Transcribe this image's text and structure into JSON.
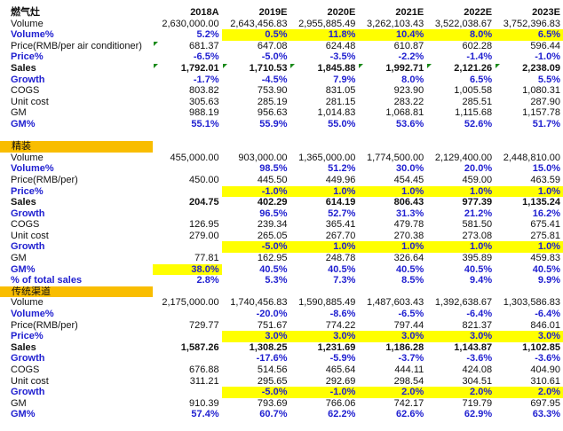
{
  "columns": [
    "2018A",
    "2019E",
    "2020E",
    "2021E",
    "2022E",
    "2023E"
  ],
  "colors": {
    "section_header": "#f9bd00",
    "highlight": "#ffff00",
    "percent_text": "#1f1fd0",
    "comment_marker": "#1a8a1a"
  },
  "sections": [
    {
      "title": "燃气灶",
      "is_header_row": true,
      "rows": [
        {
          "label": "Volume",
          "style": "normal",
          "values": [
            "2,630,000.00",
            "2,643,456.83",
            "2,955,885.49",
            "3,262,103.43",
            "3,522,038.67",
            "3,752,396.83"
          ],
          "highlight": []
        },
        {
          "label": "Volume%",
          "style": "blue",
          "values": [
            "5.2%",
            "0.5%",
            "11.8%",
            "10.4%",
            "8.0%",
            "6.5%"
          ],
          "highlight": [
            1,
            2,
            3,
            4,
            5
          ]
        },
        {
          "label": "Price(RMB/per air conditioner)",
          "style": "normal",
          "values": [
            "681.37",
            "647.08",
            "624.48",
            "610.87",
            "602.28",
            "596.44"
          ],
          "highlight": [],
          "label_marker": true
        },
        {
          "label": "Price%",
          "style": "blue",
          "values": [
            "-6.5%",
            "-5.0%",
            "-3.5%",
            "-2.2%",
            "-1.4%",
            "-1.0%"
          ],
          "highlight": []
        },
        {
          "label": "Sales",
          "style": "bold",
          "values": [
            "1,792.01",
            "1,710.53",
            "1,845.88",
            "1,992.71",
            "2,121.26",
            "2,238.09"
          ],
          "highlight": [],
          "label_marker": true,
          "cell_markers": [
            0,
            1,
            2,
            3,
            4
          ]
        },
        {
          "label": "Growth",
          "style": "blue",
          "values": [
            "-1.7%",
            "-4.5%",
            "7.9%",
            "8.0%",
            "6.5%",
            "5.5%"
          ],
          "highlight": []
        },
        {
          "label": "COGS",
          "style": "normal",
          "values": [
            "803.82",
            "753.90",
            "831.05",
            "923.90",
            "1,005.58",
            "1,080.31"
          ],
          "highlight": []
        },
        {
          "label": "Unit cost",
          "style": "normal",
          "values": [
            "305.63",
            "285.19",
            "281.15",
            "283.22",
            "285.51",
            "287.90"
          ],
          "highlight": []
        },
        {
          "label": "GM",
          "style": "normal",
          "values": [
            "988.19",
            "956.63",
            "1,014.83",
            "1,068.81",
            "1,115.68",
            "1,157.78"
          ],
          "highlight": []
        },
        {
          "label": "GM%",
          "style": "blue",
          "values": [
            "55.1%",
            "55.9%",
            "55.0%",
            "53.6%",
            "52.6%",
            "51.7%"
          ],
          "highlight": []
        }
      ]
    },
    {
      "title": "精装",
      "rows": [
        {
          "label": "Volume",
          "style": "normal",
          "values": [
            "455,000.00",
            "903,000.00",
            "1,365,000.00",
            "1,774,500.00",
            "2,129,400.00",
            "2,448,810.00"
          ],
          "highlight": []
        },
        {
          "label": "Volume%",
          "style": "blue",
          "values": [
            "",
            "98.5%",
            "51.2%",
            "30.0%",
            "20.0%",
            "15.0%"
          ],
          "highlight": []
        },
        {
          "label": "Price(RMB/per)",
          "style": "normal",
          "values": [
            "450.00",
            "445.50",
            "449.96",
            "454.45",
            "459.00",
            "463.59"
          ],
          "highlight": []
        },
        {
          "label": "Price%",
          "style": "blue",
          "values": [
            "",
            "-1.0%",
            "1.0%",
            "1.0%",
            "1.0%",
            "1.0%"
          ],
          "highlight": [
            1,
            2,
            3,
            4,
            5
          ]
        },
        {
          "label": "Sales",
          "style": "bold",
          "values": [
            "204.75",
            "402.29",
            "614.19",
            "806.43",
            "977.39",
            "1,135.24"
          ],
          "highlight": []
        },
        {
          "label": "Growth",
          "style": "blue",
          "values": [
            "",
            "96.5%",
            "52.7%",
            "31.3%",
            "21.2%",
            "16.2%"
          ],
          "highlight": []
        },
        {
          "label": "COGS",
          "style": "normal",
          "values": [
            "126.95",
            "239.34",
            "365.41",
            "479.78",
            "581.50",
            "675.41"
          ],
          "highlight": []
        },
        {
          "label": "Unit cost",
          "style": "normal",
          "values": [
            "279.00",
            "265.05",
            "267.70",
            "270.38",
            "273.08",
            "275.81"
          ],
          "highlight": []
        },
        {
          "label": "Growth",
          "style": "blue",
          "values": [
            "",
            "-5.0%",
            "1.0%",
            "1.0%",
            "1.0%",
            "1.0%"
          ],
          "highlight": [
            1,
            2,
            3,
            4,
            5
          ]
        },
        {
          "label": "GM",
          "style": "normal",
          "values": [
            "77.81",
            "162.95",
            "248.78",
            "326.64",
            "395.89",
            "459.83"
          ],
          "highlight": []
        },
        {
          "label": "GM%",
          "style": "blue",
          "values": [
            "38.0%",
            "40.5%",
            "40.5%",
            "40.5%",
            "40.5%",
            "40.5%"
          ],
          "highlight": [
            0
          ]
        },
        {
          "label": "% of total sales",
          "style": "blue",
          "values": [
            "2.8%",
            "5.3%",
            "7.3%",
            "8.5%",
            "9.4%",
            "9.9%"
          ],
          "highlight": []
        }
      ]
    },
    {
      "title": "传统渠道",
      "rows": [
        {
          "label": "Volume",
          "style": "normal",
          "values": [
            "2,175,000.00",
            "1,740,456.83",
            "1,590,885.49",
            "1,487,603.43",
            "1,392,638.67",
            "1,303,586.83"
          ],
          "highlight": []
        },
        {
          "label": "Volume%",
          "style": "blue",
          "values": [
            "",
            "-20.0%",
            "-8.6%",
            "-6.5%",
            "-6.4%",
            "-6.4%"
          ],
          "highlight": []
        },
        {
          "label": "Price(RMB/per)",
          "style": "normal",
          "values": [
            "729.77",
            "751.67",
            "774.22",
            "797.44",
            "821.37",
            "846.01"
          ],
          "highlight": []
        },
        {
          "label": "Price%",
          "style": "blue",
          "values": [
            "",
            "3.0%",
            "3.0%",
            "3.0%",
            "3.0%",
            "3.0%"
          ],
          "highlight": [
            1,
            2,
            3,
            4,
            5
          ]
        },
        {
          "label": "Sales",
          "style": "bold",
          "values": [
            "1,587.26",
            "1,308.25",
            "1,231.69",
            "1,186.28",
            "1,143.87",
            "1,102.85"
          ],
          "highlight": []
        },
        {
          "label": "Growth",
          "style": "blue",
          "values": [
            "",
            "-17.6%",
            "-5.9%",
            "-3.7%",
            "-3.6%",
            "-3.6%"
          ],
          "highlight": []
        },
        {
          "label": "COGS",
          "style": "normal",
          "values": [
            "676.88",
            "514.56",
            "465.64",
            "444.11",
            "424.08",
            "404.90"
          ],
          "highlight": []
        },
        {
          "label": "Unit cost",
          "style": "normal",
          "values": [
            "311.21",
            "295.65",
            "292.69",
            "298.54",
            "304.51",
            "310.61"
          ],
          "highlight": []
        },
        {
          "label": "Growth",
          "style": "blue",
          "values": [
            "",
            "-5.0%",
            "-1.0%",
            "2.0%",
            "2.0%",
            "2.0%"
          ],
          "highlight": [
            1,
            2,
            3,
            4,
            5
          ]
        },
        {
          "label": "GM",
          "style": "normal",
          "values": [
            "910.39",
            "793.69",
            "766.06",
            "742.17",
            "719.79",
            "697.95"
          ],
          "highlight": []
        },
        {
          "label": "GM%",
          "style": "blue",
          "values": [
            "57.4%",
            "60.7%",
            "62.2%",
            "62.6%",
            "62.9%",
            "63.3%"
          ],
          "highlight": []
        }
      ]
    }
  ]
}
